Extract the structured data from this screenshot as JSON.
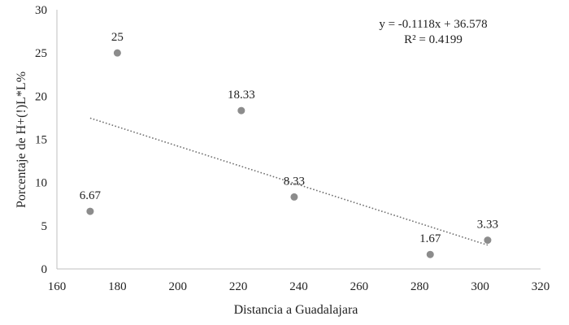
{
  "chart_data": {
    "type": "scatter",
    "title": "",
    "xlabel": "Distancia a Guadalajara",
    "ylabel": "Porcentaje de H+(!)L*L%",
    "xlim": [
      160,
      320
    ],
    "ylim": [
      0,
      30
    ],
    "x_ticks": [
      160,
      180,
      200,
      220,
      240,
      260,
      280,
      300,
      320
    ],
    "y_ticks": [
      0,
      5,
      10,
      15,
      20,
      25,
      30
    ],
    "grid": false,
    "legend": "none",
    "series": [
      {
        "points": [
          {
            "x": 171,
            "y": 6.67,
            "label": "6.67"
          },
          {
            "x": 180,
            "y": 25,
            "label": "25"
          },
          {
            "x": 221,
            "y": 18.33,
            "label": "18.33"
          },
          {
            "x": 238.5,
            "y": 8.33,
            "label": "8.33"
          },
          {
            "x": 283.5,
            "y": 1.67,
            "label": "1.67"
          },
          {
            "x": 302.5,
            "y": 3.33,
            "label": "3.33"
          }
        ]
      }
    ],
    "trendline": {
      "type": "linear",
      "slope": -0.1118,
      "intercept": 36.578,
      "x_range": [
        171,
        302.5
      ],
      "equation": "y = -0.1118x + 36.578",
      "r2": "R² = 0.4199"
    },
    "colors": {
      "marker": "#8c8c8c",
      "trendline": "#707070",
      "axis": "#bfbfbf"
    }
  }
}
